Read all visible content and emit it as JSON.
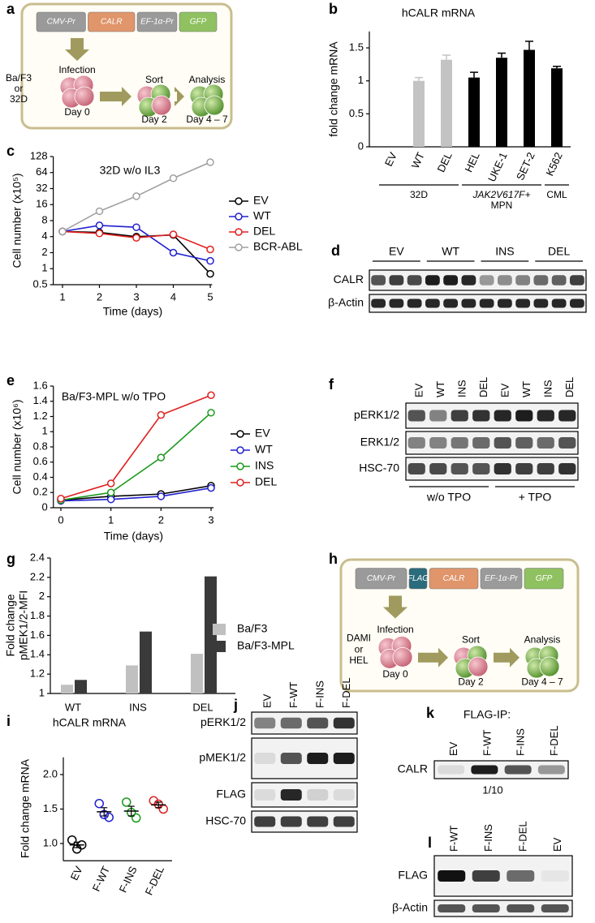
{
  "chart_data": [
    {
      "panel": "b",
      "type": "bar",
      "title": "hCALR mRNA",
      "y_label": "fold change mRNA",
      "categories": [
        "EV",
        "WT",
        "DEL",
        "HEL",
        "UKE-1",
        "SET-2",
        "K562"
      ],
      "values": [
        0,
        1.0,
        1.32,
        1.05,
        1.35,
        1.47,
        1.19
      ],
      "errors": [
        null,
        0.05,
        0.07,
        0.08,
        0.07,
        0.13,
        0.03
      ],
      "colors": [
        "#c3c3c3",
        "#c3c3c3",
        "#c3c3c3",
        "#000000",
        "#000000",
        "#000000",
        "#000000"
      ],
      "groups": [
        {
          "label": "32D"
        },
        {
          "label": "JAK2V617F+",
          "sublabel": "MPN"
        },
        {
          "label": "CML"
        }
      ],
      "ylim": [
        0,
        1.75
      ],
      "yticks": [
        0,
        0.5,
        1,
        1.5
      ]
    },
    {
      "panel": "c",
      "type": "line",
      "title": "32D w/o IL3",
      "x_label": "Time (days)",
      "y_label": "Cell number (x10⁵)",
      "x": [
        1,
        2,
        3,
        4,
        5
      ],
      "xlim": [
        0.75,
        5.05
      ],
      "xticks": [
        1,
        2,
        3,
        4,
        5
      ],
      "ylim": [
        0.5,
        128
      ],
      "yticks": [
        0.5,
        1,
        2,
        4,
        8,
        16,
        32,
        64,
        128
      ],
      "log_y": true,
      "series": [
        {
          "name": "EV",
          "color": "#000000",
          "values": [
            5,
            4.8,
            4,
            4.3,
            0.8
          ]
        },
        {
          "name": "WT",
          "color": "#2020d0",
          "values": [
            5,
            6.5,
            6,
            2,
            1.4
          ]
        },
        {
          "name": "DEL",
          "color": "#e02020",
          "values": [
            5,
            4.6,
            3.8,
            4.4,
            2.3
          ]
        },
        {
          "name": "BCR-ABL",
          "color": "#a0a0a0",
          "values": [
            5,
            12,
            23,
            50,
            100
          ]
        }
      ]
    },
    {
      "panel": "e",
      "type": "line",
      "title": "Ba/F3-MPL w/o TPO",
      "x_label": "Time (days)",
      "y_label": "Cell number (x10⁶)",
      "x": [
        0,
        1,
        2,
        3
      ],
      "xlim": [
        -0.15,
        3.05
      ],
      "xticks": [
        0,
        1,
        2,
        3
      ],
      "ylim": [
        0,
        1.6
      ],
      "yticks": [
        0,
        0.2,
        0.4,
        0.6,
        0.8,
        1,
        1.2,
        1.4,
        1.6
      ],
      "series": [
        {
          "name": "EV",
          "color": "#000000",
          "values": [
            0.1,
            0.15,
            0.18,
            0.29
          ]
        },
        {
          "name": "WT",
          "color": "#2020d0",
          "values": [
            0.09,
            0.11,
            0.15,
            0.26
          ]
        },
        {
          "name": "INS",
          "color": "#1a9a1a",
          "values": [
            0.1,
            0.2,
            0.66,
            1.25
          ]
        },
        {
          "name": "DEL",
          "color": "#e02020",
          "values": [
            0.12,
            0.32,
            1.22,
            1.48
          ]
        }
      ]
    },
    {
      "panel": "g",
      "type": "bar",
      "y_label": [
        "Fold change",
        "pMEK1/2-MFI"
      ],
      "categories": [
        "WT",
        "INS",
        "DEL"
      ],
      "series": [
        {
          "name": "Ba/F3",
          "color": "#c0c0c0",
          "values": [
            1.09,
            1.29,
            1.41
          ]
        },
        {
          "name": "Ba/F3-MPL",
          "color": "#3a3a3a",
          "values": [
            1.14,
            1.64,
            2.21
          ]
        }
      ],
      "ylim": [
        1,
        2.4
      ],
      "yticks": [
        1,
        1.2,
        1.4,
        1.6,
        1.8,
        2,
        2.2,
        2.4
      ]
    },
    {
      "panel": "i",
      "type": "strip",
      "title": "hCALR mRNA",
      "y_label": "Fold change mRNA",
      "categories": [
        "EV",
        "F-WT",
        "F-INS",
        "F-DEL"
      ],
      "points": [
        [
          1.05,
          0.98,
          0.92
        ],
        [
          1.58,
          1.38,
          1.42
        ],
        [
          1.6,
          1.37,
          1.45
        ],
        [
          1.62,
          1.5,
          1.57
        ]
      ],
      "colors": [
        "#000000",
        "#2020d0",
        "#1a9a1a",
        "#e02020"
      ],
      "means": [
        0.98,
        1.46,
        1.47,
        1.56
      ],
      "errors": [
        0.04,
        0.06,
        0.07,
        0.04
      ],
      "ylim": [
        0.75,
        2.25
      ],
      "yticks": [
        {
          "value": 1,
          "label": "1.0"
        },
        1.5,
        {
          "value": 2,
          "label": "2.0"
        }
      ]
    }
  ],
  "diagrams": [
    {
      "panel": "a",
      "constructs": [
        {
          "label": "CMV-Pr",
          "color": "#9a9a9a"
        },
        {
          "label": "CALR",
          "color": "#e0956a"
        },
        {
          "label": "EF-1α-Pr",
          "color": "#9a9a9a"
        },
        {
          "label": "GFP",
          "color": "#8fc160"
        }
      ],
      "source": [
        "Ba/F3",
        "or",
        "32D"
      ],
      "steps": [
        {
          "label": "Infection",
          "day": "Day 0"
        },
        {
          "label": "Sort",
          "day": "Day 2"
        },
        {
          "label": "Analysis",
          "day": "Day 4 – 7"
        }
      ]
    },
    {
      "panel": "h",
      "constructs": [
        {
          "label": "CMV-Pr",
          "color": "#9a9a9a"
        },
        {
          "label": "FLAG",
          "color": "#2a6b7c"
        },
        {
          "label": "CALR",
          "color": "#e0956a"
        },
        {
          "label": "EF-1α-Pr",
          "color": "#9a9a9a"
        },
        {
          "label": "GFP",
          "color": "#8fc160"
        }
      ],
      "source": [
        "DAMI",
        "or",
        "HEL"
      ],
      "steps": [
        {
          "label": "Infection",
          "day": "Day 0"
        },
        {
          "label": "Sort",
          "day": "Day 2"
        },
        {
          "label": "Analysis",
          "day": "Day 4 – 7"
        }
      ]
    }
  ],
  "blots": [
    {
      "panel": "d",
      "column_groups": [
        "EV",
        "WT",
        "INS",
        "DEL"
      ],
      "rows": [
        "CALR",
        "β-Actin"
      ]
    },
    {
      "panel": "f",
      "columns": [
        "EV",
        "WT",
        "INS",
        "DEL",
        "EV",
        "WT",
        "INS",
        "DEL"
      ],
      "rows": [
        "pERK1/2",
        "ERK1/2",
        "HSC-70"
      ],
      "column_groups": [
        "w/o TPO",
        "+ TPO"
      ]
    },
    {
      "panel": "j",
      "columns": [
        "EV",
        "F-WT",
        "F-INS",
        "F-DEL"
      ],
      "rows": [
        "pERK1/2",
        "pMEK1/2",
        "FLAG",
        "HSC-70"
      ]
    },
    {
      "panel": "k",
      "title": "FLAG-IP:",
      "columns": [
        "EV",
        "F-WT",
        "F-INS",
        "F-DEL"
      ],
      "rows": [
        "CALR"
      ],
      "note": "1/10"
    },
    {
      "panel": "l",
      "columns": [
        "F-WT",
        "F-INS",
        "F-DEL",
        "EV"
      ],
      "rows": [
        "FLAG",
        "β-Actin"
      ]
    }
  ]
}
